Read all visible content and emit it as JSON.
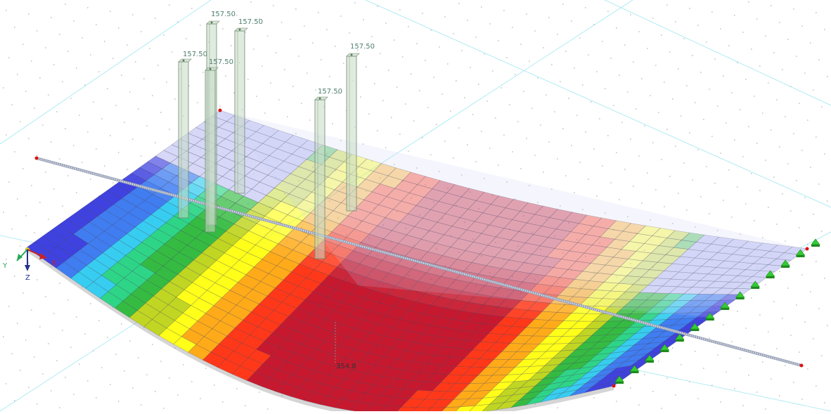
{
  "axes": {
    "x_label": "X",
    "y_label": "Y",
    "z_label": "Z"
  },
  "load_value": "157.50",
  "deflection_label": "354.8",
  "colors": {
    "scale": [
      "#2a2edb",
      "#2b6ff0",
      "#21c8ee",
      "#17d07a",
      "#1fb42d",
      "#b9d10a",
      "#ffff00",
      "#ffa200",
      "#ff2200",
      "#c00018"
    ],
    "slab_top": "#c9cbf5",
    "load_column": "#c7dac7",
    "support": "#33cc33",
    "node": "#dd1111",
    "beam": "#c8d0e0",
    "grid_line": "#9ee7f0",
    "grid_dot": "#bfc3c8"
  }
}
